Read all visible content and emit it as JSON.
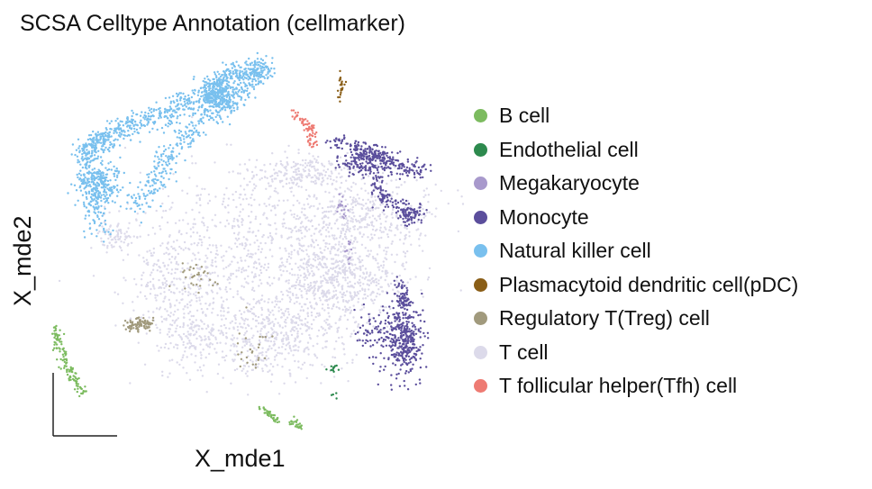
{
  "title": "SCSA Celltype Annotation (cellmarker)",
  "chart_data": {
    "type": "scatter",
    "title": "SCSA Celltype Annotation (cellmarker)",
    "xlabel": "X_mde1",
    "ylabel": "X_mde2",
    "ticks": "none",
    "grid": false,
    "legend_position": "right",
    "xlim": [
      0,
      1
    ],
    "ylim": [
      0,
      1
    ],
    "series": [
      {
        "name": "B cell",
        "color": "#7cbb5f",
        "clusters": [
          [
            0.2,
            0.08
          ],
          [
            0.15,
            0.2
          ],
          [
            0.25,
            0.3
          ],
          [
            0.95,
            0.25
          ],
          [
            1.22,
            0.08
          ]
        ]
      },
      {
        "name": "Endothelial cell",
        "color": "#2d8a4e",
        "clusters": [
          [
            0.8,
            0.43
          ],
          [
            1.12,
            0.58
          ]
        ]
      },
      {
        "name": "Megakaryocyte",
        "color": "#a899cc",
        "clusters": [
          [
            0.55,
            0.78
          ],
          [
            0.6,
            0.68
          ],
          [
            0.72,
            0.7
          ]
        ]
      },
      {
        "name": "Monocyte",
        "color": "#5b4e9c",
        "clusters": [
          [
            1.35,
            0.85
          ],
          [
            1.75,
            0.95
          ],
          [
            1.5,
            0.52
          ],
          [
            1.45,
            0.72
          ],
          [
            1.7,
            0.5
          ],
          [
            1.65,
            0.3
          ],
          [
            1.5,
            0.4
          ],
          [
            1.62,
            0.42
          ]
        ]
      },
      {
        "name": "Natural killer cell",
        "color": "#79c0ee",
        "clusters": [
          [
            1.3,
            0.8
          ],
          [
            1.0,
            0.62
          ],
          [
            0.55,
            0.5
          ],
          [
            0.3,
            0.52
          ],
          [
            0.28,
            0.62
          ],
          [
            0.48,
            0.55
          ],
          [
            0.62,
            0.8
          ],
          [
            0.8,
            0.85
          ],
          [
            0.85,
            0.98
          ],
          [
            1.05,
            0.96
          ]
        ]
      },
      {
        "name": "Plasmacytoid dendritic cell(pDC)",
        "color": "#8a5e17",
        "clusters": [
          [
            0.72,
            0.9
          ],
          [
            0.85,
            0.95
          ]
        ]
      },
      {
        "name": "Regulatory T(Treg) cell",
        "color": "#a19a7d",
        "clusters": [
          [
            0.75,
            0.38
          ],
          [
            0.62,
            0.52
          ],
          [
            0.88,
            0.55
          ],
          [
            0.9,
            0.4
          ],
          [
            0.98,
            0.52
          ]
        ]
      },
      {
        "name": "T cell",
        "color": "#dcdaea",
        "clusters": [
          [
            0.5,
            0.52
          ],
          [
            0.85,
            0.62
          ],
          [
            1.1,
            0.6
          ],
          [
            0.72,
            0.5
          ],
          [
            1.0,
            0.45
          ],
          [
            1.3,
            0.55
          ]
        ]
      },
      {
        "name": "T follicular helper(Tfh) cell",
        "color": "#ee7b73",
        "clusters": [
          [
            1.2,
            0.88
          ],
          [
            1.35,
            0.82
          ]
        ]
      }
    ]
  }
}
